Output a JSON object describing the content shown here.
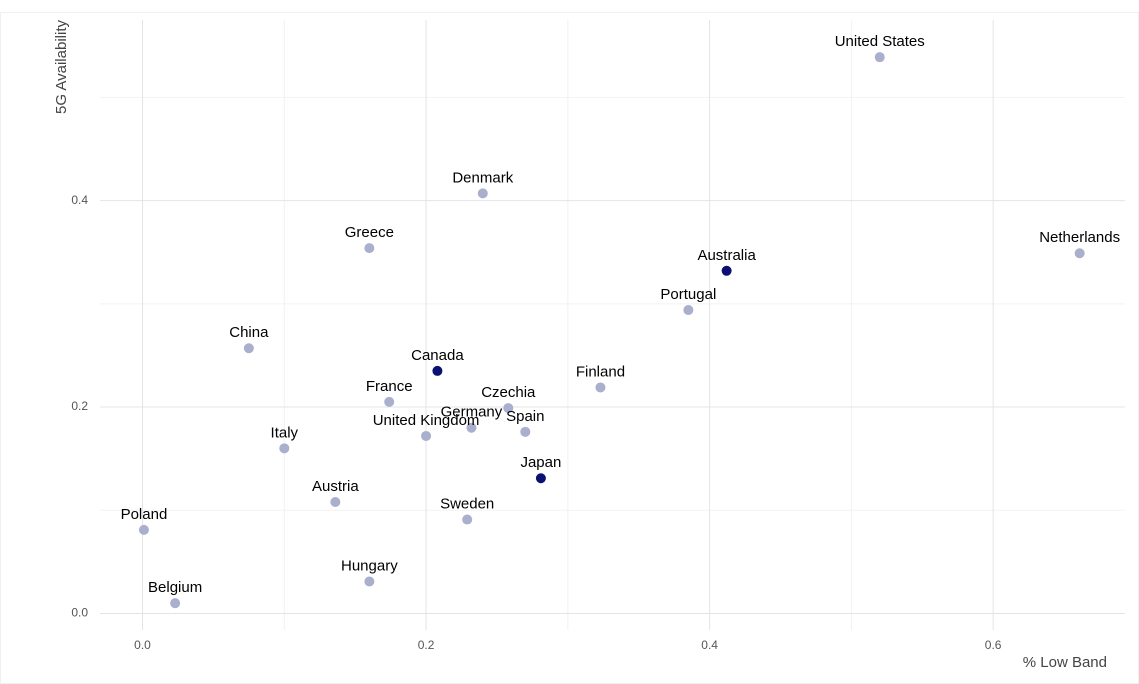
{
  "chart_data": {
    "type": "scatter",
    "x_label": "% Low Band",
    "y_label": "5G Availability",
    "labels": [
      "United States",
      "Denmark",
      "Greece",
      "Australia",
      "Netherlands",
      "Portugal",
      "China",
      "Canada",
      "Finland",
      "France",
      "Czechia",
      "Germany",
      "Spain",
      "United Kingdom",
      "Italy",
      "Japan",
      "Austria",
      "Sweden",
      "Poland",
      "Hungary",
      "Belgium"
    ],
    "x": [
      0.52,
      0.24,
      0.16,
      0.412,
      0.661,
      0.385,
      0.075,
      0.208,
      0.323,
      0.174,
      0.258,
      0.232,
      0.27,
      0.2,
      0.1,
      0.281,
      0.136,
      0.229,
      0.001,
      0.16,
      0.023
    ],
    "y": [
      0.539,
      0.407,
      0.354,
      0.332,
      0.349,
      0.294,
      0.257,
      0.235,
      0.219,
      0.205,
      0.199,
      0.18,
      0.176,
      0.172,
      0.16,
      0.131,
      0.108,
      0.091,
      0.081,
      0.031,
      0.01
    ],
    "highlighted": [
      false,
      false,
      false,
      true,
      false,
      false,
      false,
      true,
      false,
      false,
      false,
      false,
      false,
      false,
      false,
      true,
      false,
      false,
      false,
      false,
      false
    ],
    "color": "#a9afcc",
    "highlight_color": "#0a1172",
    "xlim": [
      -0.03,
      0.693
    ],
    "ylim": [
      -0.016,
      0.575
    ],
    "xticks": [
      {
        "value": 0,
        "label": "0.0"
      },
      0.2,
      0.4,
      0.6
    ],
    "yticks": [
      {
        "value": 0,
        "label": "0.0"
      },
      0.2,
      0.4
    ],
    "grid": true,
    "minor_grid": true
  }
}
